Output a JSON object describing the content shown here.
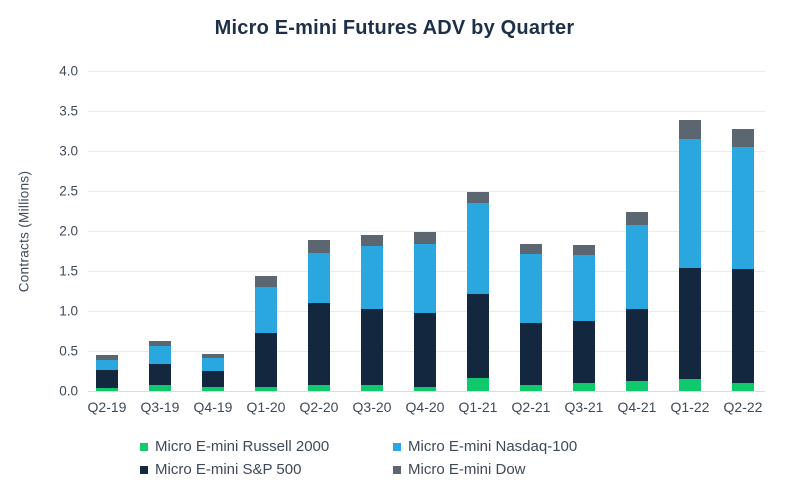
{
  "page": {
    "background": "#FFFFFF"
  },
  "colors": {
    "title_text": "#1D3047",
    "axis_text": "#3E4A57",
    "gridline": "#EBEBEB",
    "baseline": "#D9DCDE"
  },
  "chart_data": {
    "type": "bar",
    "stacked": true,
    "title": "Micro E-mini Futures ADV by Quarter",
    "xlabel": "",
    "ylabel": "Contracts (Millions)",
    "ylim": [
      0,
      4.0
    ],
    "yticks": [
      "0.0",
      "0.5",
      "1.0",
      "1.5",
      "2.0",
      "2.5",
      "3.0",
      "3.5",
      "4.0"
    ],
    "grid": true,
    "legend_position": "bottom",
    "categories": [
      "Q2-19",
      "Q3-19",
      "Q4-19",
      "Q1-20",
      "Q2-20",
      "Q3-20",
      "Q4-20",
      "Q1-21",
      "Q2-21",
      "Q3-21",
      "Q4-21",
      "Q1-22",
      "Q2-22"
    ],
    "series": [
      {
        "name": "Micro E-mini Russell 2000",
        "color": "#10C96D",
        "values": [
          0.04,
          0.07,
          0.05,
          0.05,
          0.08,
          0.07,
          0.05,
          0.16,
          0.08,
          0.1,
          0.13,
          0.15,
          0.1
        ]
      },
      {
        "name": "Micro E-mini S&P 500",
        "color": "#13273F",
        "values": [
          0.22,
          0.27,
          0.2,
          0.68,
          1.02,
          0.96,
          0.92,
          1.05,
          0.77,
          0.78,
          0.9,
          1.39,
          1.42
        ]
      },
      {
        "name": "Micro E-mini Nasdaq-100",
        "color": "#2AA7DF",
        "values": [
          0.13,
          0.22,
          0.16,
          0.57,
          0.62,
          0.78,
          0.87,
          1.14,
          0.86,
          0.82,
          1.05,
          1.61,
          1.53
        ]
      },
      {
        "name": "Micro E-mini Dow",
        "color": "#5C6671",
        "values": [
          0.06,
          0.06,
          0.05,
          0.14,
          0.17,
          0.14,
          0.15,
          0.14,
          0.13,
          0.13,
          0.16,
          0.24,
          0.22
        ]
      }
    ],
    "stack_order_note": "series listed bottom-to-top",
    "legend_order": [
      0,
      2,
      1,
      3
    ]
  }
}
